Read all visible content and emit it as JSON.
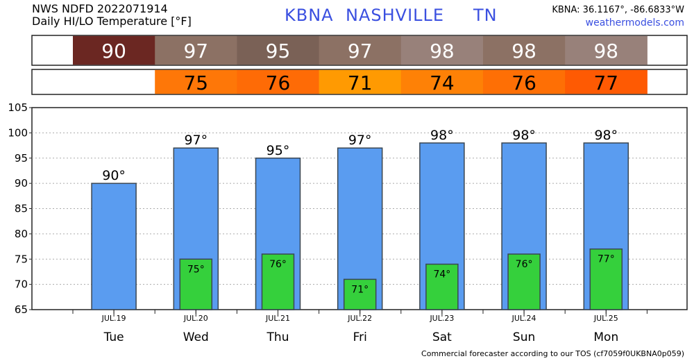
{
  "header": {
    "line1": "NWS NDFD 2022071914",
    "line2": "Daily HI/LO Temperature [°F]",
    "station": "KBNA",
    "city": "NASHVILLE",
    "state": "TN",
    "coords": "KBNA: 36.1167°, -86.6833°W",
    "site": "weathermodels.com"
  },
  "footer": "Commercial forecaster according to our TOS (cf7059f0UKBNA0p059)",
  "colors": {
    "high_bar": "#5a9cf0",
    "low_bar": "#35d03c",
    "high_row_cells": [
      "#6b2722",
      "#8c7164",
      "#7a6156",
      "#8c7164",
      "#98817a",
      "#8c7164",
      "#98817a"
    ],
    "low_row_cells": [
      "",
      "#fe7708",
      "#fe6b06",
      "#ff9a02",
      "#fe8106",
      "#fe6f05",
      "#fe5a03"
    ]
  },
  "chart_data": {
    "type": "bar",
    "categories": [
      "Tue",
      "Wed",
      "Thu",
      "Fri",
      "Sat",
      "Sun",
      "Mon"
    ],
    "dates": [
      "JUL.19",
      "JUL.20",
      "JUL.21",
      "JUL.22",
      "JUL.23",
      "JUL.24",
      "JUL.25"
    ],
    "series": [
      {
        "values": [
          90,
          97,
          95,
          97,
          98,
          98,
          98
        ]
      },
      {
        "values": [
          null,
          75,
          76,
          71,
          74,
          76,
          77
        ]
      }
    ],
    "high_labels": [
      "90°",
      "97°",
      "95°",
      "97°",
      "98°",
      "98°",
      "98°"
    ],
    "low_labels": [
      "",
      "75°",
      "76°",
      "71°",
      "74°",
      "76°",
      "77°"
    ],
    "high_row": [
      "90",
      "97",
      "95",
      "97",
      "98",
      "98",
      "98"
    ],
    "low_row": [
      "",
      "75",
      "76",
      "71",
      "74",
      "76",
      "77"
    ],
    "yticks": [
      "65",
      "70",
      "75",
      "80",
      "85",
      "90",
      "95",
      "100",
      "105"
    ],
    "ylim": [
      65,
      105
    ],
    "grid": true,
    "title": "",
    "xlabel": "",
    "ylabel": ""
  }
}
